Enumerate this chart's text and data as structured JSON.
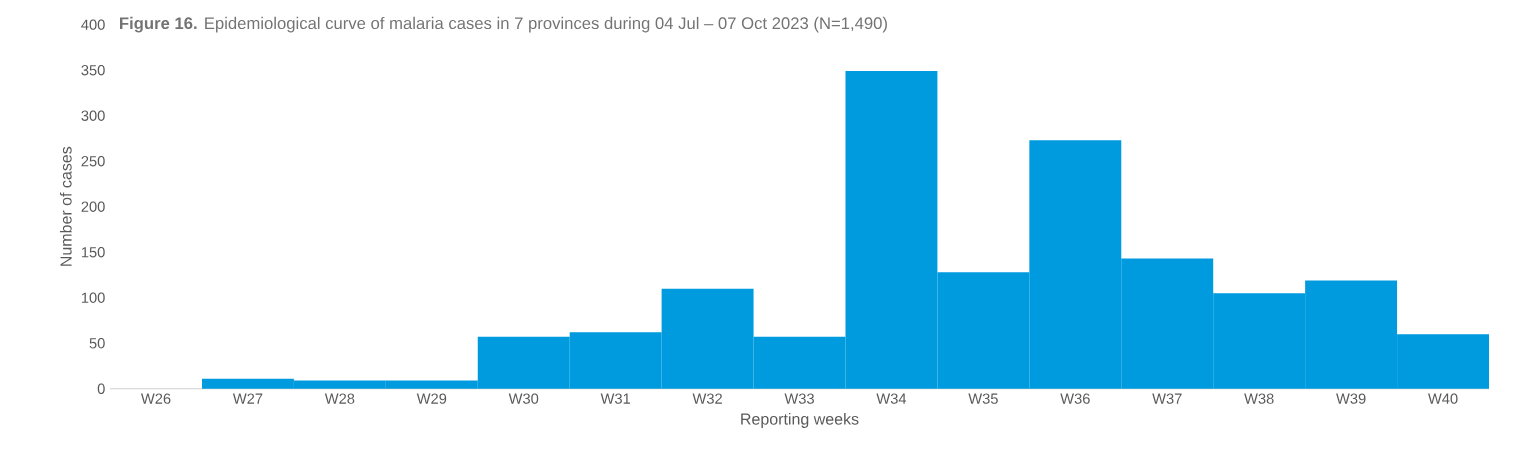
{
  "chart_data": {
    "type": "bar",
    "title": "**Figure 16.** Epidemiological curve of malaria cases in 7 provinces during 04 Jul – 07 Oct 2023 (N=1,490)",
    "xlabel": "Reporting weeks",
    "ylabel": "Number of cases",
    "categories": [
      "W26",
      "W27",
      "W28",
      "W29",
      "W30",
      "W31",
      "W32",
      "W33",
      "W34",
      "W35",
      "W36",
      "W37",
      "W38",
      "W39",
      "W40"
    ],
    "values": [
      0,
      11,
      9,
      9,
      57,
      62,
      110,
      57,
      349,
      128,
      273,
      143,
      105,
      119,
      60
    ],
    "color": "#009ade",
    "ylim": [
      0,
      400
    ],
    "yticks": [
      0,
      50,
      100,
      150,
      200,
      250,
      300,
      350,
      400
    ],
    "grid": false
  }
}
